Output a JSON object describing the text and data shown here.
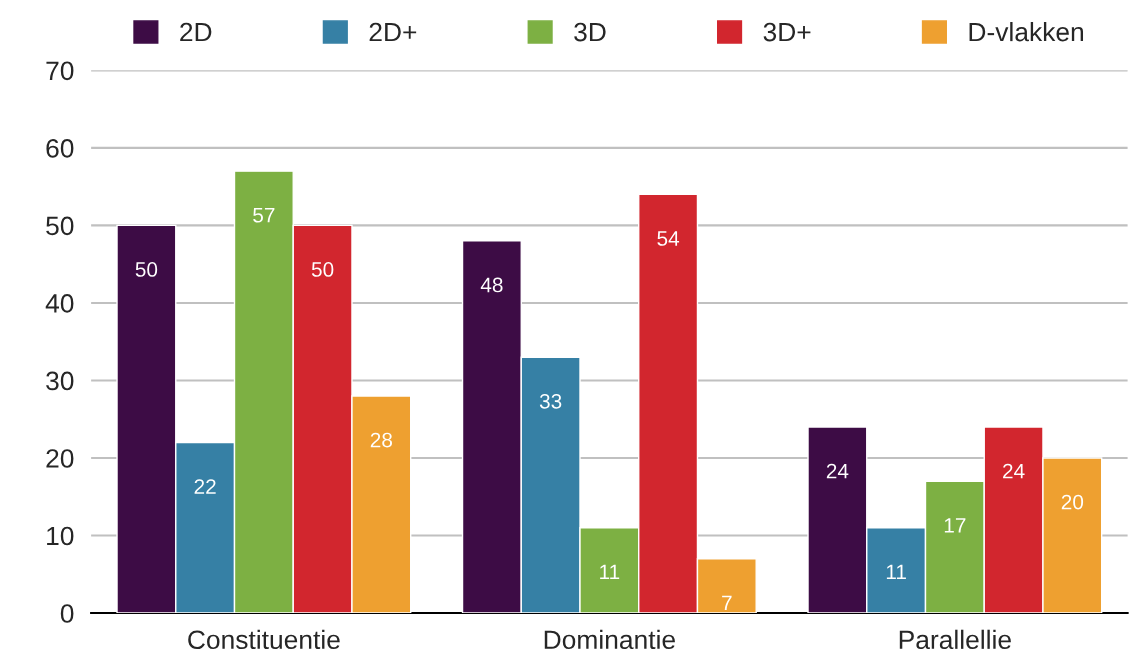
{
  "chart_data": {
    "type": "bar",
    "categories": [
      "Constituentie",
      "Dominantie",
      "Parallellie"
    ],
    "series": [
      {
        "name": "2D",
        "color": "#3d0c45",
        "values": [
          50,
          48,
          24
        ]
      },
      {
        "name": "2D+",
        "color": "#3680a5",
        "values": [
          22,
          33,
          11
        ]
      },
      {
        "name": "3D",
        "color": "#7db043",
        "values": [
          57,
          11,
          17
        ]
      },
      {
        "name": "3D+",
        "color": "#d2262e",
        "values": [
          50,
          54,
          24
        ]
      },
      {
        "name": "D-vlakken",
        "color": "#eea030",
        "values": [
          28,
          7,
          20
        ]
      }
    ],
    "ylim": [
      0,
      70
    ],
    "yticks": [
      0,
      10,
      20,
      30,
      40,
      50,
      60,
      70
    ],
    "grid": "y",
    "legend": "top",
    "data_labels": true
  }
}
